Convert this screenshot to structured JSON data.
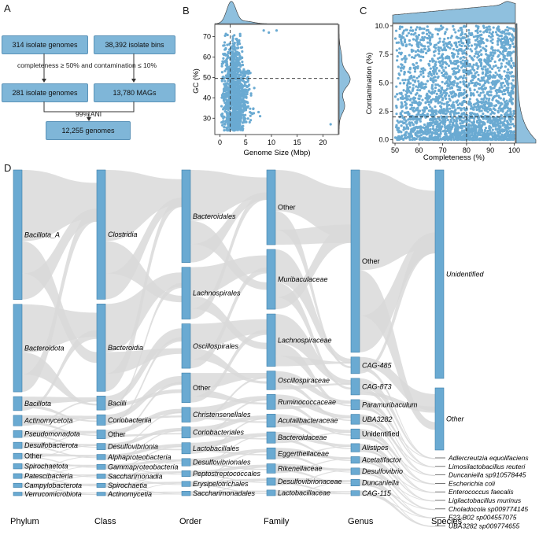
{
  "panels": {
    "a": "A",
    "b": "B",
    "c": "C",
    "d": "D"
  },
  "panel_a": {
    "isolate_genomes": "314 isolate genomes",
    "isolate_bins": "38,392 isolate bins",
    "criteria": "completeness ≥ 50% and contamination ≤ 10%",
    "isolate_genomes_filtered": "281 isolate genomes",
    "mags": "13,780 MAGs",
    "ani": "99% ANI",
    "genomes_final": "12,255 genomes"
  },
  "chart_data": [
    {
      "type": "scatter",
      "panel": "B",
      "xlabel": "Genome Size (Mbp)",
      "ylabel": "GC (%)",
      "xlim": [
        -1,
        23
      ],
      "ylim": [
        22,
        76
      ],
      "xticks": [
        0,
        5,
        10,
        15,
        20
      ],
      "yticks": [
        30,
        40,
        50,
        60,
        70
      ],
      "reference_lines": {
        "x": 2,
        "y": 49.5
      },
      "marginal_density": true,
      "color": "#6aaad2",
      "cluster": {
        "x_center": 2.3,
        "x_spread": 1.5,
        "y_min": 24,
        "y_max": 74,
        "n_points": 1200
      },
      "outliers": [
        [
          9.5,
          72
        ],
        [
          8.5,
          73
        ],
        [
          11,
          73
        ],
        [
          21.5,
          27
        ],
        [
          7.5,
          33
        ],
        [
          7.8,
          31
        ]
      ]
    },
    {
      "type": "scatter",
      "panel": "C",
      "xlabel": "Completeness (%)",
      "ylabel": "Contamination (%)",
      "xlim": [
        49,
        100.5
      ],
      "ylim": [
        -0.3,
        10.2
      ],
      "xticks": [
        50,
        60,
        70,
        80,
        90,
        100
      ],
      "yticks": [
        0.0,
        2.5,
        5.0,
        7.5,
        10.0
      ],
      "ytick_labels": [
        "0.0",
        "2.5",
        "5.0",
        "7.5",
        "10.0"
      ],
      "reference_lines": {
        "x": 80,
        "y": 2
      },
      "marginal_density": true,
      "color": "#6aaad2",
      "n_points": 2600
    }
  ],
  "sankey": {
    "columns": [
      {
        "header": "Phylum",
        "nodes": [
          "Bacillota_A",
          "Bacteroidota",
          "Bacillota",
          "Actinomycetota",
          "Pseudomonadota",
          "Desulfobacterota",
          "Other",
          "Spirochaetota",
          "Patescibacteria",
          "Campylobacterota",
          "Verrucomicrobiota"
        ],
        "sizes": [
          37,
          25,
          4,
          3,
          2,
          1.8,
          1.6,
          1.5,
          1.4,
          1.2,
          1.0
        ]
      },
      {
        "header": "Class",
        "nodes": [
          "Clostridia",
          "Bacteroidia",
          "Bacilli",
          "Coriobacteriia",
          "Other",
          "Desulfovibrionia",
          "Alphaproteobacteria",
          "Gammaproteobacteria",
          "Saccharimonadia",
          "Spirochaetia",
          "Actinomycetia"
        ],
        "sizes": [
          37,
          25,
          4,
          3,
          2.5,
          1.8,
          1.5,
          1.4,
          1.3,
          1.2,
          1.0
        ]
      },
      {
        "header": "Order",
        "nodes": [
          "Bacteroidales",
          "Lachnospirales",
          "Oscillospirales",
          "Other",
          "Christensenellales",
          "Coriobacteriales",
          "Lactobacillales",
          "Desulfovibrionales",
          "Peptostreptococcales",
          "Erysipelotrichales",
          "Saccharimonadales"
        ],
        "sizes": [
          25,
          14,
          12,
          8,
          4,
          3,
          3,
          2,
          1.6,
          1.4,
          1.2
        ]
      },
      {
        "header": "Family",
        "nodes": [
          "Other",
          "Muribaculaceae",
          "Lachnospiraceae",
          "Oscillospiraceae",
          "Ruminococcaceae",
          "Acutalibacteraceae",
          "Bacteroidaceae",
          "Eggerthellaceae",
          "Rikenellaceae",
          "Desulfovibrionaceae",
          "Lactobacillaceae"
        ],
        "sizes": [
          20,
          16,
          14,
          5,
          4,
          3.5,
          3,
          3,
          2.5,
          2,
          1.5
        ]
      },
      {
        "header": "Genus",
        "nodes": [
          "Other",
          "CAG-485",
          "CAG-873",
          "Paramuribaculum",
          "UBA3282",
          "Unidentified",
          "Alistipes",
          "Acetatifactor",
          "Desulfovibrio",
          "Duncaniella",
          "CAG-115"
        ],
        "sizes": [
          55,
          5,
          5,
          3,
          3,
          3,
          2.5,
          2,
          2,
          2,
          1.5
        ]
      },
      {
        "header": "Species",
        "nodes": [
          "Unidentified",
          "Other",
          "Adlercreutzia equolifaciens",
          "Limosilactobacillus reuteri",
          "Duncaniella sp910578445",
          "Escherichia coli",
          "Enterococcus faecalis",
          "Ligilactobacillus murinus",
          "Choladocola sp009774145",
          "F23-B02 sp004557075",
          "UBA3282 sp009774655"
        ],
        "sizes": [
          62,
          20,
          0.4,
          0.4,
          0.4,
          0.4,
          0.4,
          0.4,
          0.4,
          0.4,
          0.4
        ]
      }
    ],
    "node_color": "#6aaad2",
    "link_color": "#d9d9d9"
  }
}
